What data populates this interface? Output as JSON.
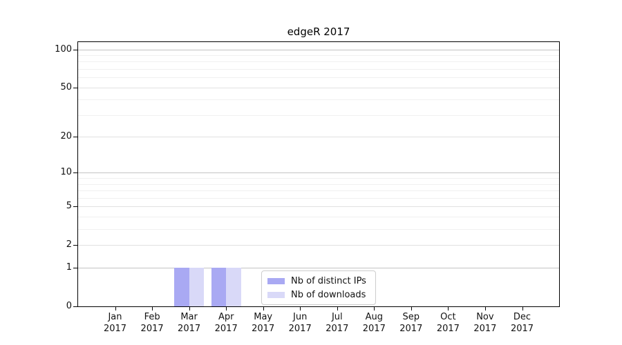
{
  "chart_data": {
    "type": "bar",
    "title": "edgeR 2017",
    "xlabel": "",
    "ylabel": "",
    "categories": [
      "Jan 2017",
      "Feb 2017",
      "Mar 2017",
      "Apr 2017",
      "May 2017",
      "Jun 2017",
      "Jul 2017",
      "Aug 2017",
      "Sep 2017",
      "Oct 2017",
      "Nov 2017",
      "Dec 2017"
    ],
    "series": [
      {
        "name": "Nb of distinct IPs",
        "color": "#a9a9f3",
        "values": [
          0,
          0,
          1,
          1,
          0,
          0,
          0,
          0,
          0,
          0,
          0,
          0
        ]
      },
      {
        "name": "Nb of downloads",
        "color": "#d9d9f8",
        "values": [
          0,
          0,
          1,
          1,
          0,
          0,
          0,
          0,
          0,
          0,
          0,
          0
        ]
      }
    ],
    "y_axis": {
      "scale": "log10(1+v)",
      "ticks": [
        0,
        1,
        2,
        5,
        10,
        20,
        50,
        100
      ],
      "minor_ticks": [
        3,
        4,
        6,
        7,
        8,
        9,
        30,
        40,
        60,
        70,
        80,
        90
      ],
      "ylim": [
        0,
        114
      ]
    },
    "grid": "horizontal",
    "legend": {
      "position": "lower center-right"
    },
    "colors": {
      "grid_major": "#c3c3c3",
      "grid_semi": "#e1e1e1",
      "grid_minor": "#f0f0f0",
      "axis": "#000000"
    }
  }
}
